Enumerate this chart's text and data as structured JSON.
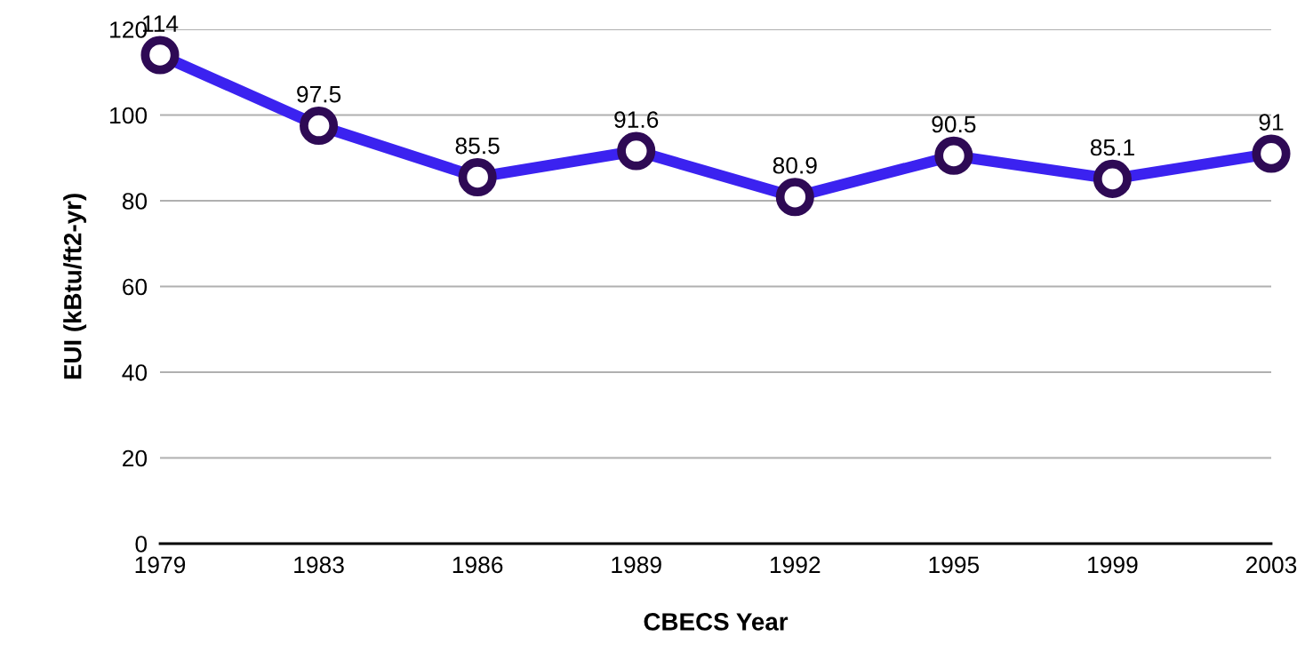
{
  "chart_data": {
    "type": "line",
    "xlabel": "CBECS Year",
    "ylabel": "EUI (kBtu/ft2-yr)",
    "categories": [
      "1979",
      "1983",
      "1986",
      "1989",
      "1992",
      "1995",
      "1999",
      "2003"
    ],
    "series": [
      {
        "color": "#3b22f0",
        "values": [
          114,
          97.5,
          85.5,
          91.6,
          80.9,
          90.5,
          85.1,
          91
        ]
      }
    ],
    "ylim": [
      0,
      120
    ],
    "yticks": [
      0,
      20,
      40,
      60,
      80,
      100,
      120
    ],
    "grid": "y",
    "marker": "circle",
    "data_labels": true
  }
}
